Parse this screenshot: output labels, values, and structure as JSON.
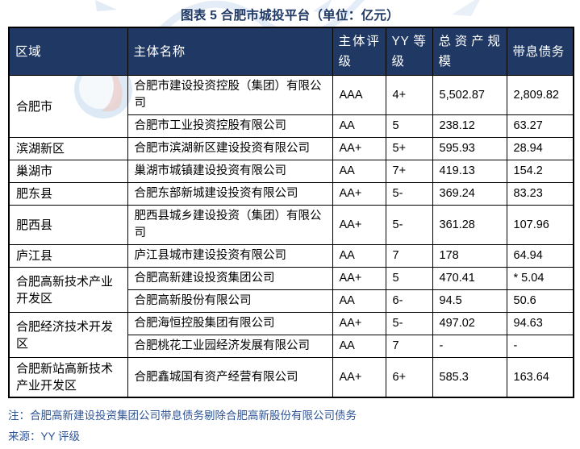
{
  "title": "图表 5 合肥市城投平台（单位：亿元）",
  "table": {
    "columns": [
      "区域",
      "主体名称",
      "主体评级",
      "YY 等级",
      "总资产规模",
      "带息债务"
    ],
    "rows": [
      {
        "region": "合肥市",
        "region_span": 2,
        "name": "合肥市建设投资控股（集团）有限公司",
        "rating": "AAA",
        "yy": "4+",
        "assets": "5,502.87",
        "debt": "2,809.82"
      },
      {
        "name": "合肥市工业投资控股有限公司",
        "rating": "AA",
        "yy": "5",
        "assets": "238.12",
        "debt": "63.27"
      },
      {
        "region": "滨湖新区",
        "region_span": 1,
        "name": "合肥市滨湖新区建设投资有限公司",
        "rating": "AA+",
        "yy": "5+",
        "assets": "595.93",
        "debt": "28.94"
      },
      {
        "region": "巢湖市",
        "region_span": 1,
        "name": "巢湖市城镇建设投资有限公司",
        "rating": "AA",
        "yy": "7+",
        "assets": "419.13",
        "debt": "154.2"
      },
      {
        "region": "肥东县",
        "region_span": 1,
        "name": "合肥东部新城建设投资有限公司",
        "rating": "AA+",
        "yy": "5-",
        "assets": "369.24",
        "debt": "83.23"
      },
      {
        "region": "肥西县",
        "region_span": 1,
        "name": "肥西县城乡建设投资（集团）有限公司",
        "rating": "AA+",
        "yy": "5-",
        "assets": "361.28",
        "debt": "107.96"
      },
      {
        "region": "庐江县",
        "region_span": 1,
        "name": "庐江县城市建设投资有限公司",
        "rating": "AA",
        "yy": "7",
        "assets": "178",
        "debt": "64.94"
      },
      {
        "region": "合肥高新技术产业开发区",
        "region_span": 2,
        "name": "合肥高新建设投资集团公司",
        "rating": "AA+",
        "yy": "5",
        "assets": "470.41",
        "debt": "* 5.04"
      },
      {
        "name": "合肥高新股份有限公司",
        "rating": "AA",
        "yy": "6-",
        "assets": "94.5",
        "debt": "50.6"
      },
      {
        "region": "合肥经济技术开发区",
        "region_span": 2,
        "name": "合肥海恒控股集团有限公司",
        "rating": "AA+",
        "yy": "5-",
        "assets": "497.02",
        "debt": "94.63"
      },
      {
        "name": "合肥桃花工业园经济发展有限公司",
        "rating": "AA",
        "yy": "7",
        "assets": "-",
        "debt": "-"
      },
      {
        "region": "合肥新站高新技术产业开发区",
        "region_span": 1,
        "name": "合肥鑫城国有资产经营有限公司",
        "rating": "AA+",
        "yy": "6+",
        "assets": "585.3",
        "debt": "163.64"
      }
    ]
  },
  "note": "注：合肥高新建设投资集团公司带息债务剔除合肥高新股份有限公司债务",
  "source": "来源：YY 评级",
  "colors": {
    "header_bg": "#1F3864",
    "title_text": "#1F3864",
    "note_text": "#2F5496",
    "border": "#000000",
    "watermark_blue": "#c7dcee"
  }
}
